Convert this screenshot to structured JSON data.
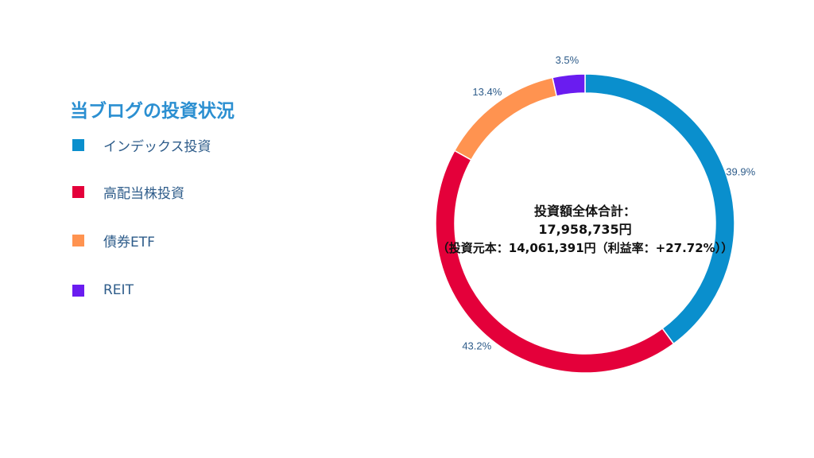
{
  "title": "当ブログの投資状況",
  "center": {
    "line1": "投資額全体合計：",
    "line2": "17,958,735円",
    "line3": "（投資元本：14,061,391円（利益率：+27.72%））"
  },
  "colors": {
    "title": "#2b8fd1",
    "legend_text": "#2e5c8a"
  },
  "chart_data": {
    "type": "pie",
    "style": "donut",
    "legend": "left",
    "slices": [
      {
        "label": "インデックス投資",
        "value": 39.9,
        "value_label": "39.9%",
        "color": "#0a8fcd"
      },
      {
        "label": "高配当株投資",
        "value": 43.2,
        "value_label": "43.2%",
        "color": "#e4003a"
      },
      {
        "label": "債券ETF",
        "value": 13.4,
        "value_label": "13.4%",
        "color": "#ff9350"
      },
      {
        "label": "REIT",
        "value": 3.5,
        "value_label": "3.5%",
        "color": "#6a1cf0"
      }
    ]
  }
}
